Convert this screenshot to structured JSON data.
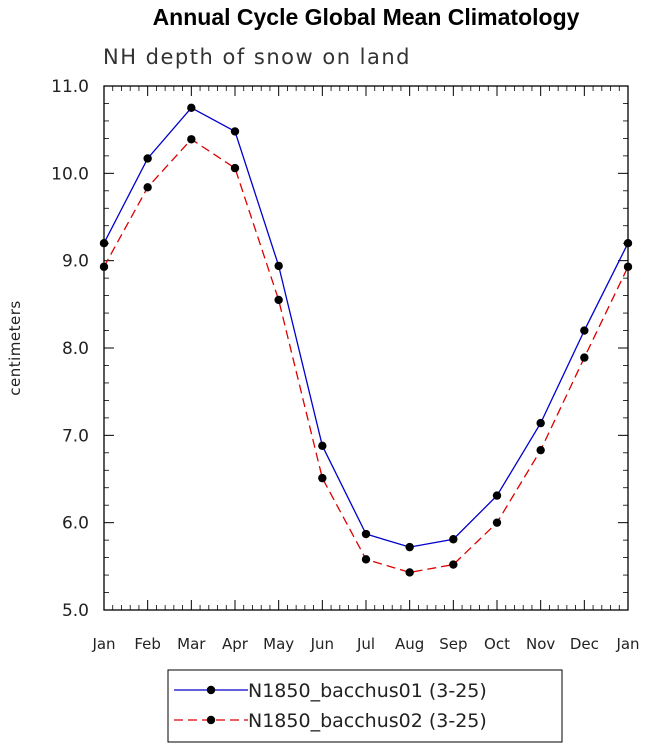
{
  "chart_data": {
    "type": "line",
    "title": "Annual Cycle Global Mean Climatology",
    "subtitle": "NH depth of snow on land",
    "xlabel": "",
    "ylabel": "centimeters",
    "categories": [
      "Jan",
      "Feb",
      "Mar",
      "Apr",
      "May",
      "Jun",
      "Jul",
      "Aug",
      "Sep",
      "Oct",
      "Nov",
      "Dec",
      "Jan"
    ],
    "ylim": [
      5.0,
      11.0
    ],
    "yticks": [
      "5.0",
      "6.0",
      "7.0",
      "8.0",
      "9.0",
      "10.0",
      "11.0"
    ],
    "grid": false,
    "legend_position": "bottom",
    "series": [
      {
        "name": "N1850_bacchus01 (3-25)",
        "color": "#0000cc",
        "dash": "solid",
        "values": [
          9.2,
          10.17,
          10.75,
          10.48,
          8.94,
          6.88,
          5.87,
          5.72,
          5.81,
          6.31,
          7.14,
          8.2,
          9.2
        ]
      },
      {
        "name": "N1850_bacchus02 (3-25)",
        "color": "#dd0000",
        "dash": "dashed",
        "values": [
          8.93,
          9.84,
          10.39,
          10.06,
          8.55,
          6.51,
          5.58,
          5.43,
          5.52,
          6.0,
          6.83,
          7.89,
          8.93
        ]
      }
    ]
  }
}
